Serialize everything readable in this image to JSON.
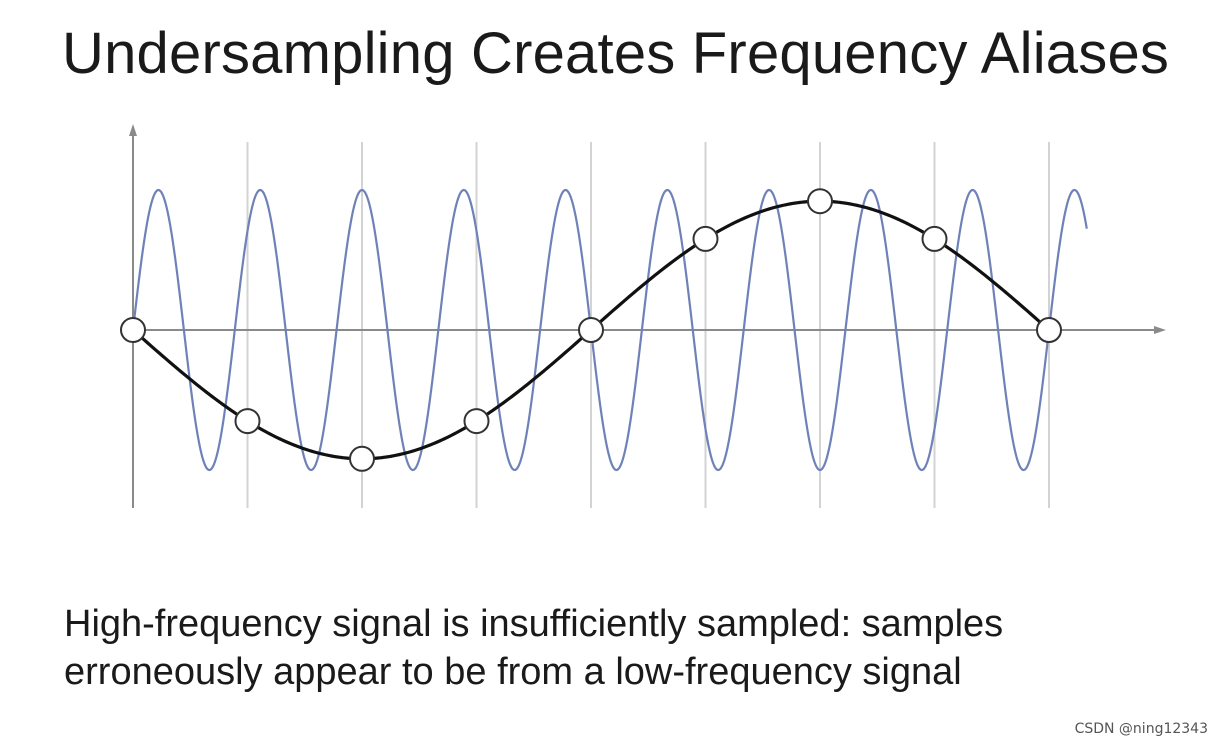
{
  "title": "Undersampling Creates Frequency Aliases",
  "caption": {
    "line1": "High-frequency signal is insufficiently sampled: samples",
    "line2": "erroneously appear to be from a low-frequency signal"
  },
  "watermark": "CSDN @ning12343",
  "colors": {
    "high_frequency_signal": "#6f82b8",
    "alias_signal": "#111111",
    "axes": "#8a8a8a",
    "gridlines": "#d3d3d3",
    "sample_marker_fill": "#ffffff",
    "sample_marker_stroke": "#333333"
  },
  "diagram": {
    "high_frequency_cycles_per_interval": 1.125,
    "alias_cycles_per_interval": 0.125,
    "sample_count": 9,
    "high_frequency_amplitude": 1.0,
    "alias_amplitude": 0.92
  }
}
